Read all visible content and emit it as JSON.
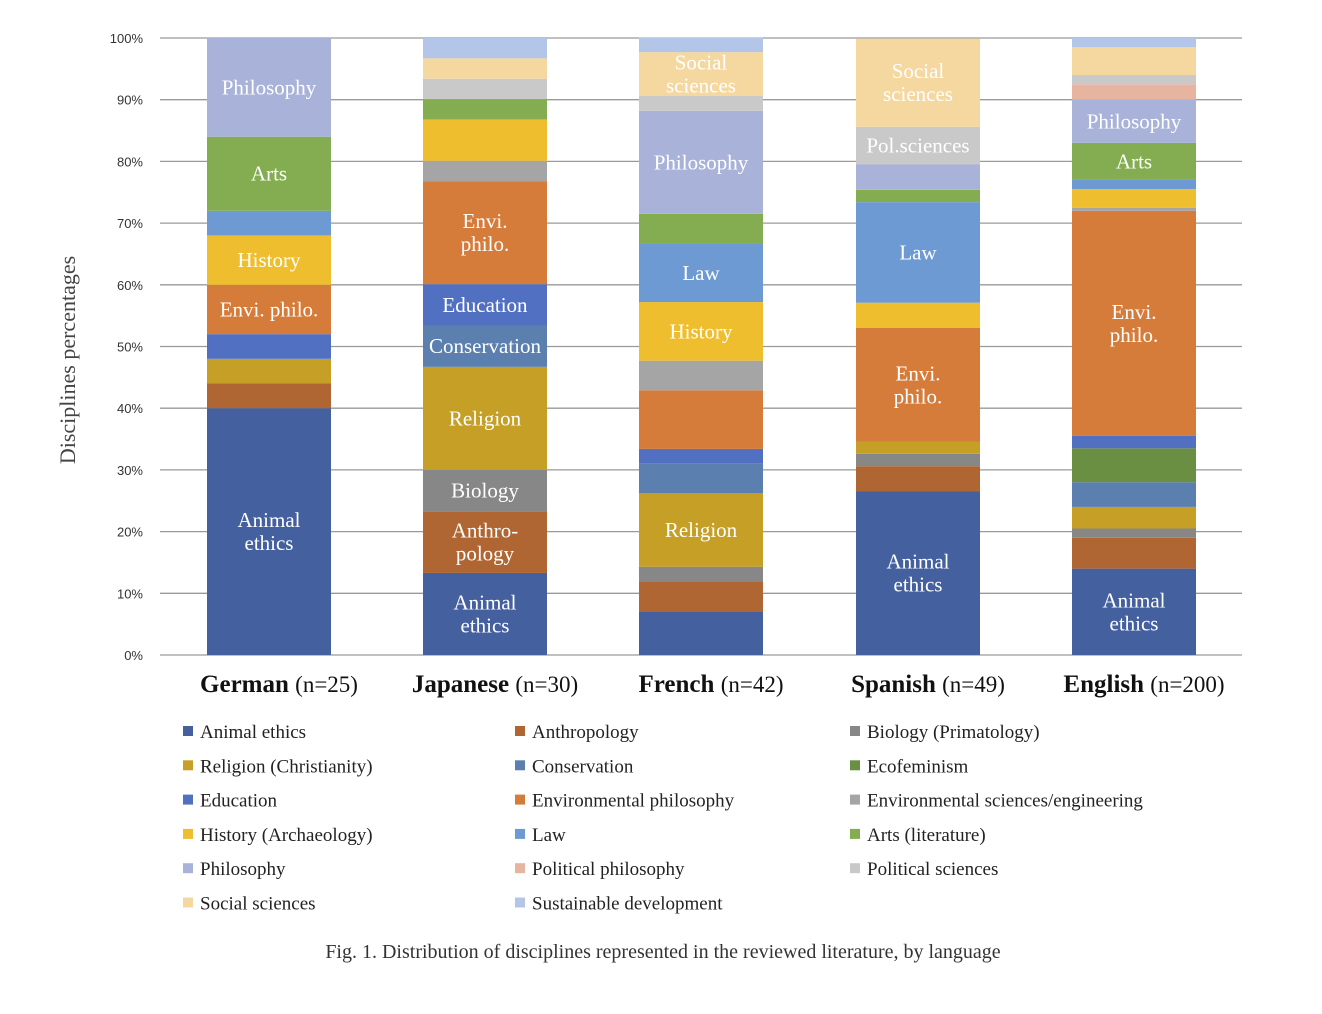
{
  "chart_data": {
    "type": "bar",
    "stacked": true,
    "normalized": true,
    "title": "",
    "caption": "Fig. 1. Distribution of disciplines represented in the reviewed literature, by language",
    "ylabel": "Disciplines percentages",
    "xlabel": "",
    "ylim": [
      0,
      100
    ],
    "yticks": [
      "0%",
      "10%",
      "20%",
      "30%",
      "40%",
      "50%",
      "60%",
      "70%",
      "80%",
      "90%",
      "100%"
    ],
    "grid": true,
    "legend_position": "bottom",
    "categories": [
      {
        "name": "German",
        "n": "(n=25)"
      },
      {
        "name": "Japanese",
        "n": "(n=30)"
      },
      {
        "name": "French",
        "n": "(n=42)"
      },
      {
        "name": "Spanish",
        "n": "(n=49)"
      },
      {
        "name": "English",
        "n": "(n=200)"
      }
    ],
    "series": [
      {
        "name": "Animal ethics",
        "color": "#44609f",
        "values": [
          40,
          13.3,
          7.1,
          26.5,
          14
        ]
      },
      {
        "name": "Anthropology",
        "color": "#b06632",
        "values": [
          4,
          10,
          4.8,
          4.1,
          5
        ]
      },
      {
        "name": "Biology (Primatology)",
        "color": "#878787",
        "values": [
          0,
          6.7,
          2.4,
          2.0,
          1.5
        ]
      },
      {
        "name": "Religion (Christianity)",
        "color": "#c6a026",
        "values": [
          4,
          16.7,
          11.9,
          2.0,
          3.5
        ]
      },
      {
        "name": "Conservation",
        "color": "#5b7fae",
        "values": [
          0,
          6.7,
          4.8,
          0,
          4
        ]
      },
      {
        "name": "Ecofeminism",
        "color": "#6b8f42",
        "values": [
          0,
          0,
          0,
          0,
          5.5
        ]
      },
      {
        "name": "Education",
        "color": "#5170c2",
        "values": [
          4,
          6.7,
          2.4,
          0,
          2
        ]
      },
      {
        "name": "Environmental philosophy",
        "color": "#d67c3a",
        "values": [
          8,
          16.7,
          9.5,
          18.4,
          36.5
        ]
      },
      {
        "name": "Environmental sciences/engineering",
        "color": "#a5a5a5",
        "values": [
          0,
          3.3,
          4.8,
          0,
          0.5
        ]
      },
      {
        "name": "History (Archaeology)",
        "color": "#efbe2e",
        "values": [
          8,
          6.7,
          9.5,
          4.1,
          3
        ]
      },
      {
        "name": "Law",
        "color": "#6d9ad3",
        "values": [
          4,
          0,
          9.5,
          16.3,
          1.5
        ]
      },
      {
        "name": "Arts (literature)",
        "color": "#84ad52",
        "values": [
          12,
          3.3,
          4.8,
          2.0,
          6
        ]
      },
      {
        "name": "Philosophy",
        "color": "#a9b3d9",
        "values": [
          16,
          0,
          16.7,
          4.1,
          7
        ]
      },
      {
        "name": "Political philosophy",
        "color": "#e7b4a0",
        "values": [
          0,
          0,
          0,
          0,
          2.5
        ]
      },
      {
        "name": "Political sciences",
        "color": "#c9c9c9",
        "values": [
          0,
          3.3,
          2.4,
          6.1,
          1.5
        ]
      },
      {
        "name": "Social sciences",
        "color": "#f5d8a0",
        "values": [
          0,
          3.3,
          7.1,
          14.3,
          4.5
        ]
      },
      {
        "name": "Sustainable development",
        "color": "#b4c6e7",
        "values": [
          0,
          3.3,
          2.4,
          0,
          1.5
        ]
      }
    ],
    "segment_labels": [
      [
        {
          "series": 0,
          "text": "Animal\nethics"
        },
        {
          "series": 7,
          "text": "Envi. philo."
        },
        {
          "series": 9,
          "text": "History"
        },
        {
          "series": 11,
          "text": "Arts"
        },
        {
          "series": 12,
          "text": "Philosophy"
        }
      ],
      [
        {
          "series": 0,
          "text": "Animal\nethics"
        },
        {
          "series": 1,
          "text": "Anthro-\npology"
        },
        {
          "series": 2,
          "text": "Biology"
        },
        {
          "series": 3,
          "text": "Religion"
        },
        {
          "series": 4,
          "text": "Conservation"
        },
        {
          "series": 6,
          "text": "Education"
        },
        {
          "series": 7,
          "text": "Envi.\nphilo."
        }
      ],
      [
        {
          "series": 3,
          "text": "Religion"
        },
        {
          "series": 9,
          "text": "History"
        },
        {
          "series": 10,
          "text": "Law"
        },
        {
          "series": 12,
          "text": "Philosophy"
        },
        {
          "series": 15,
          "text": "Social\nsciences"
        }
      ],
      [
        {
          "series": 0,
          "text": "Animal\nethics"
        },
        {
          "series": 7,
          "text": "Envi.\nphilo."
        },
        {
          "series": 10,
          "text": "Law"
        },
        {
          "series": 14,
          "text": "Pol.sciences"
        },
        {
          "series": 15,
          "text": "Social\nsciences"
        }
      ],
      [
        {
          "series": 0,
          "text": "Animal\nethics"
        },
        {
          "series": 7,
          "text": "Envi.\nphilo."
        },
        {
          "series": 11,
          "text": "Arts"
        },
        {
          "series": 12,
          "text": "Philosophy"
        }
      ]
    ],
    "legend_order": [
      0,
      1,
      2,
      3,
      4,
      5,
      6,
      7,
      8,
      9,
      10,
      11,
      12,
      13,
      14,
      15,
      16
    ]
  }
}
